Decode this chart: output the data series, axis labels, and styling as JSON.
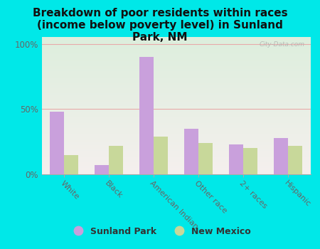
{
  "categories": [
    "White",
    "Black",
    "American Indian",
    "Other race",
    "2+ races",
    "Hispanic"
  ],
  "sunland_park": [
    48,
    7,
    90,
    35,
    23,
    28
  ],
  "new_mexico": [
    15,
    22,
    29,
    24,
    20,
    22
  ],
  "sunland_park_color": "#c9a0dc",
  "new_mexico_color": "#c8d89a",
  "title": "Breakdown of poor residents within races\n(income below poverty level) in Sunland\nPark, NM",
  "title_fontsize": 11,
  "title_fontweight": "bold",
  "ylabel_ticks": [
    "0%",
    "50%",
    "100%"
  ],
  "yticks": [
    0,
    50,
    100
  ],
  "ylim": [
    0,
    105
  ],
  "background_outer": "#00e8e8",
  "background_chart": "#eef4e8",
  "legend_sunland": "Sunland Park",
  "legend_nm": "New Mexico",
  "watermark": "City-Data.com",
  "bar_width": 0.32
}
